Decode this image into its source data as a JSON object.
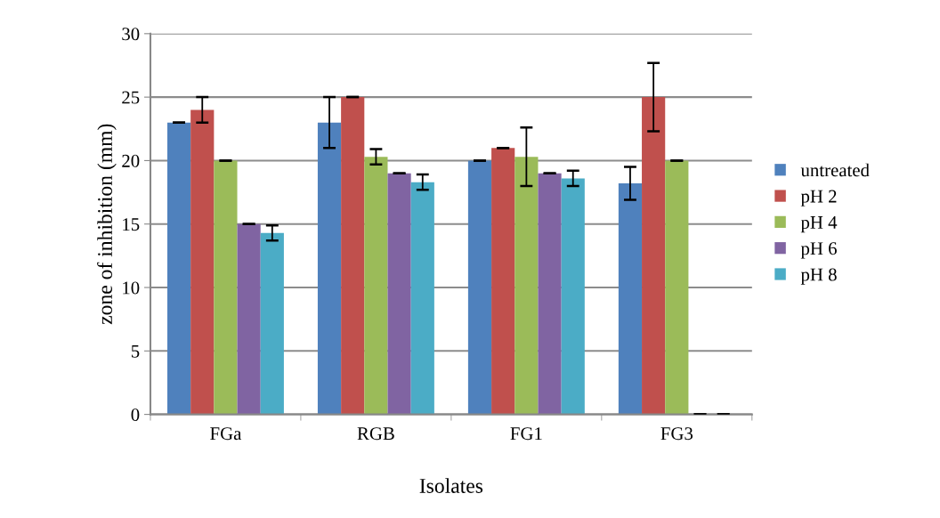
{
  "chart_data": {
    "type": "bar",
    "xlabel": "Isolates",
    "ylabel": "zone of inhibition (mm)",
    "categories": [
      "FGa",
      "RGB",
      "FG1",
      "FG3"
    ],
    "series": [
      {
        "name": "untreated",
        "color": "#4f81bd",
        "values": [
          23,
          23,
          20,
          18.2
        ],
        "errors": [
          0,
          2,
          0,
          1.3
        ]
      },
      {
        "name": "pH 2",
        "color": "#c0504d",
        "values": [
          24,
          25,
          21,
          25
        ],
        "errors": [
          1,
          0,
          0,
          2.7
        ]
      },
      {
        "name": "pH 4",
        "color": "#9bbb59",
        "values": [
          20,
          20.3,
          20.3,
          20
        ],
        "errors": [
          0,
          0.6,
          2.3,
          0
        ]
      },
      {
        "name": "pH 6",
        "color": "#8064a2",
        "values": [
          15,
          19,
          19,
          0
        ],
        "errors": [
          0,
          0,
          0,
          0
        ]
      },
      {
        "name": "pH 8",
        "color": "#4bacc6",
        "values": [
          14.3,
          18.3,
          18.6,
          0
        ],
        "errors": [
          0.6,
          0.6,
          0.6,
          0
        ]
      }
    ],
    "ylim": [
      0,
      30
    ],
    "yticks": [
      0,
      5,
      10,
      15,
      20,
      25,
      30
    ],
    "grid": "y",
    "legend": "right"
  }
}
